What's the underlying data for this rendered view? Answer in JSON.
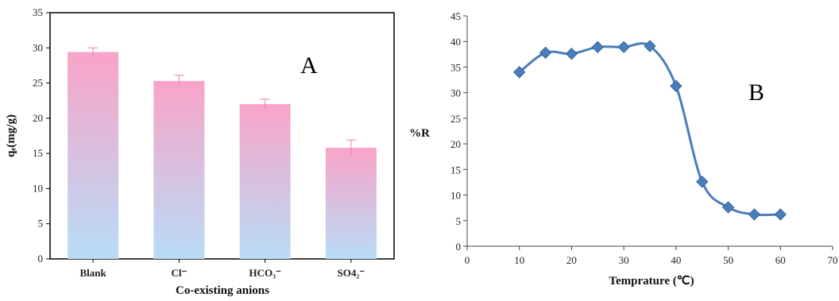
{
  "chart_data": [
    {
      "type": "bar",
      "panel_label": "A",
      "categories": [
        "Blank",
        "Cl⁻",
        "HCO₃⁻",
        "SO4₂⁻"
      ],
      "values": [
        29.4,
        25.3,
        22.0,
        15.8
      ],
      "errors": [
        0.6,
        0.8,
        0.7,
        1.1
      ],
      "xlabel": "Co-existing anions",
      "ylabel": "qₑ(mg/g)",
      "ylim": [
        0,
        35
      ],
      "yticks": [
        0,
        5,
        10,
        15,
        20,
        25,
        30,
        35
      ],
      "bar_gradient": [
        "#f8a4c8",
        "#b8dcf6"
      ],
      "grid": false
    },
    {
      "type": "line",
      "panel_label": "B",
      "x": [
        10,
        15,
        20,
        25,
        30,
        35,
        40,
        45,
        50,
        55,
        60
      ],
      "y": [
        34.0,
        37.8,
        37.6,
        38.9,
        38.9,
        39.1,
        31.3,
        12.6,
        7.6,
        6.2,
        6.2
      ],
      "xlabel": "Temprature (℃)",
      "ylabel": "%R",
      "xlim": [
        0,
        70
      ],
      "ylim": [
        0,
        45
      ],
      "xticks": [
        0,
        10,
        20,
        30,
        40,
        50,
        60,
        70
      ],
      "yticks": [
        0,
        5,
        10,
        15,
        20,
        25,
        30,
        35,
        40,
        45
      ],
      "line_color": "#4a7ebb",
      "marker": "diamond",
      "grid": false
    }
  ]
}
